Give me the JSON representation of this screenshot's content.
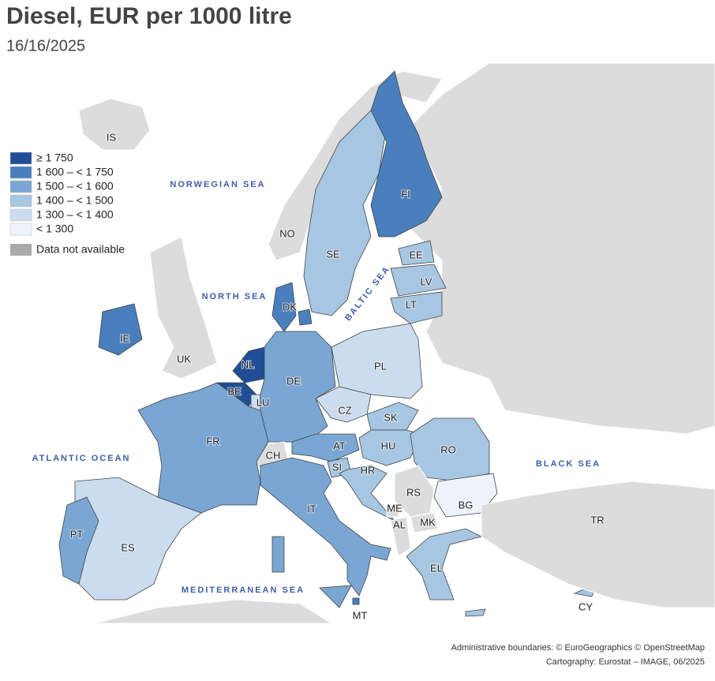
{
  "header": {
    "title": "Diesel, EUR per 1000 litre",
    "subtitle": "16/16/2025"
  },
  "legend": {
    "items": [
      {
        "label": "≥ 1 750",
        "color": "#1f4e96"
      },
      {
        "label": "1 600 – < 1 750",
        "color": "#4a7fbd"
      },
      {
        "label": "1 500 – < 1 600",
        "color": "#7aa6d3"
      },
      {
        "label": "1 400 – < 1 500",
        "color": "#a6c6e2"
      },
      {
        "label": "1 300 – < 1 400",
        "color": "#cbdcee"
      },
      {
        "label": "< 1 300",
        "color": "#eef2fb"
      }
    ],
    "na": {
      "label": "Data not available",
      "color": "#aaaaaa"
    }
  },
  "countries": [
    {
      "label": "IS",
      "color": "#dcdcdc"
    },
    {
      "label": "NO",
      "color": "#dcdcdc"
    },
    {
      "label": "SE",
      "color": "#a6c6e2"
    },
    {
      "label": "FI",
      "color": "#4a7fbd"
    },
    {
      "label": "EE",
      "color": "#a6c6e2"
    },
    {
      "label": "LV",
      "color": "#a6c6e2"
    },
    {
      "label": "LT",
      "color": "#a6c6e2"
    },
    {
      "label": "DK",
      "color": "#4a7fbd"
    },
    {
      "label": "IE",
      "color": "#4a7fbd"
    },
    {
      "label": "UK",
      "color": "#dcdcdc"
    },
    {
      "label": "NL",
      "color": "#1f4e96"
    },
    {
      "label": "BE",
      "color": "#1f4e96"
    },
    {
      "label": "LU",
      "color": "#cbdcee"
    },
    {
      "label": "DE",
      "color": "#7aa6d3"
    },
    {
      "label": "PL",
      "color": "#cbdcee"
    },
    {
      "label": "CZ",
      "color": "#cbdcee"
    },
    {
      "label": "SK",
      "color": "#a6c6e2"
    },
    {
      "label": "HU",
      "color": "#a6c6e2"
    },
    {
      "label": "RO",
      "color": "#a6c6e2"
    },
    {
      "label": "AT",
      "color": "#7aa6d3"
    },
    {
      "label": "CH",
      "color": "#dcdcdc"
    },
    {
      "label": "SI",
      "color": "#a6c6e2"
    },
    {
      "label": "HR",
      "color": "#a6c6e2"
    },
    {
      "label": "RS",
      "color": "#dcdcdc"
    },
    {
      "label": "ME",
      "color": "#dcdcdc"
    },
    {
      "label": "AL",
      "color": "#dcdcdc"
    },
    {
      "label": "MK",
      "color": "#dcdcdc"
    },
    {
      "label": "BG",
      "color": "#eef2fb"
    },
    {
      "label": "FR",
      "color": "#7aa6d3"
    },
    {
      "label": "IT",
      "color": "#7aa6d3"
    },
    {
      "label": "ES",
      "color": "#cbdcee"
    },
    {
      "label": "PT",
      "color": "#7aa6d3"
    },
    {
      "label": "EL",
      "color": "#a6c6e2"
    },
    {
      "label": "MT",
      "color": "#4a7fbd"
    },
    {
      "label": "CY",
      "color": "#a6c6e2"
    },
    {
      "label": "TR",
      "color": "#dcdcdc"
    }
  ],
  "seas": [
    "NORWEGIAN SEA",
    "NORTH SEA",
    "ATLANTIC OCEAN",
    "BLACK SEA",
    "MEDITERRANEAN SEA",
    "BALTIC SEA"
  ],
  "credits": [
    "Administrative boundaries: © EuroGeographics © OpenStreetMap",
    "Cartography: Eurostat – IMAGE, 06/2025"
  ]
}
